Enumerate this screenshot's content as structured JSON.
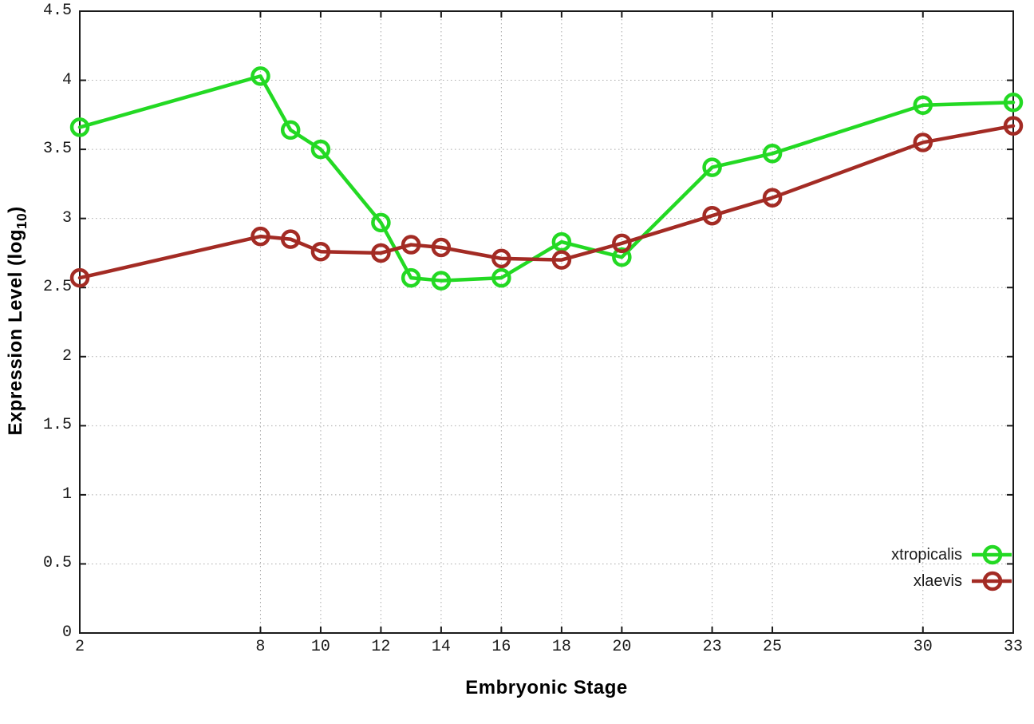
{
  "page": {
    "background": "#ffffff",
    "grid_color": "#aaaaaa",
    "border_color": "#1a1a1a"
  },
  "chart_data": {
    "type": "line",
    "title": "",
    "xlabel": "Embryonic Stage",
    "ylabel": "Expression Level (log10)",
    "ylabel_parts": {
      "pre": "Expression Level (log",
      "sub": "10",
      "post": ")"
    },
    "xlim": [
      2,
      33
    ],
    "ylim": [
      0,
      4.5
    ],
    "grid": true,
    "legend_position": "inside-bottom-right",
    "x_ticks": [
      2,
      8,
      10,
      12,
      14,
      16,
      18,
      20,
      23,
      25,
      30,
      33
    ],
    "x_tick_labels": [
      "2",
      "8",
      "10",
      "12",
      "14",
      "16",
      "18",
      "20",
      "23",
      "25",
      "30",
      "33"
    ],
    "y_ticks": [
      0,
      0.5,
      1,
      1.5,
      2,
      2.5,
      3,
      3.5,
      4,
      4.5
    ],
    "y_tick_labels": [
      "0",
      "0.5",
      "1",
      "1.5",
      "2",
      "2.5",
      "3",
      "3.5",
      "4",
      "4.5"
    ],
    "x": [
      2,
      8,
      9,
      10,
      12,
      13,
      14,
      16,
      18,
      20,
      23,
      25,
      30,
      33
    ],
    "series": [
      {
        "name": "xtropicalis",
        "color": "#23d923",
        "marker": "open-circle",
        "values": [
          3.66,
          4.03,
          3.64,
          3.5,
          2.97,
          2.57,
          2.55,
          2.57,
          2.83,
          2.72,
          3.37,
          3.47,
          3.82,
          3.84
        ]
      },
      {
        "name": "xlaevis",
        "color": "#a32b24",
        "marker": "open-circle",
        "values": [
          2.57,
          2.87,
          2.85,
          2.76,
          2.75,
          2.81,
          2.79,
          2.71,
          2.7,
          2.82,
          3.02,
          3.15,
          3.55,
          3.67
        ]
      }
    ]
  }
}
